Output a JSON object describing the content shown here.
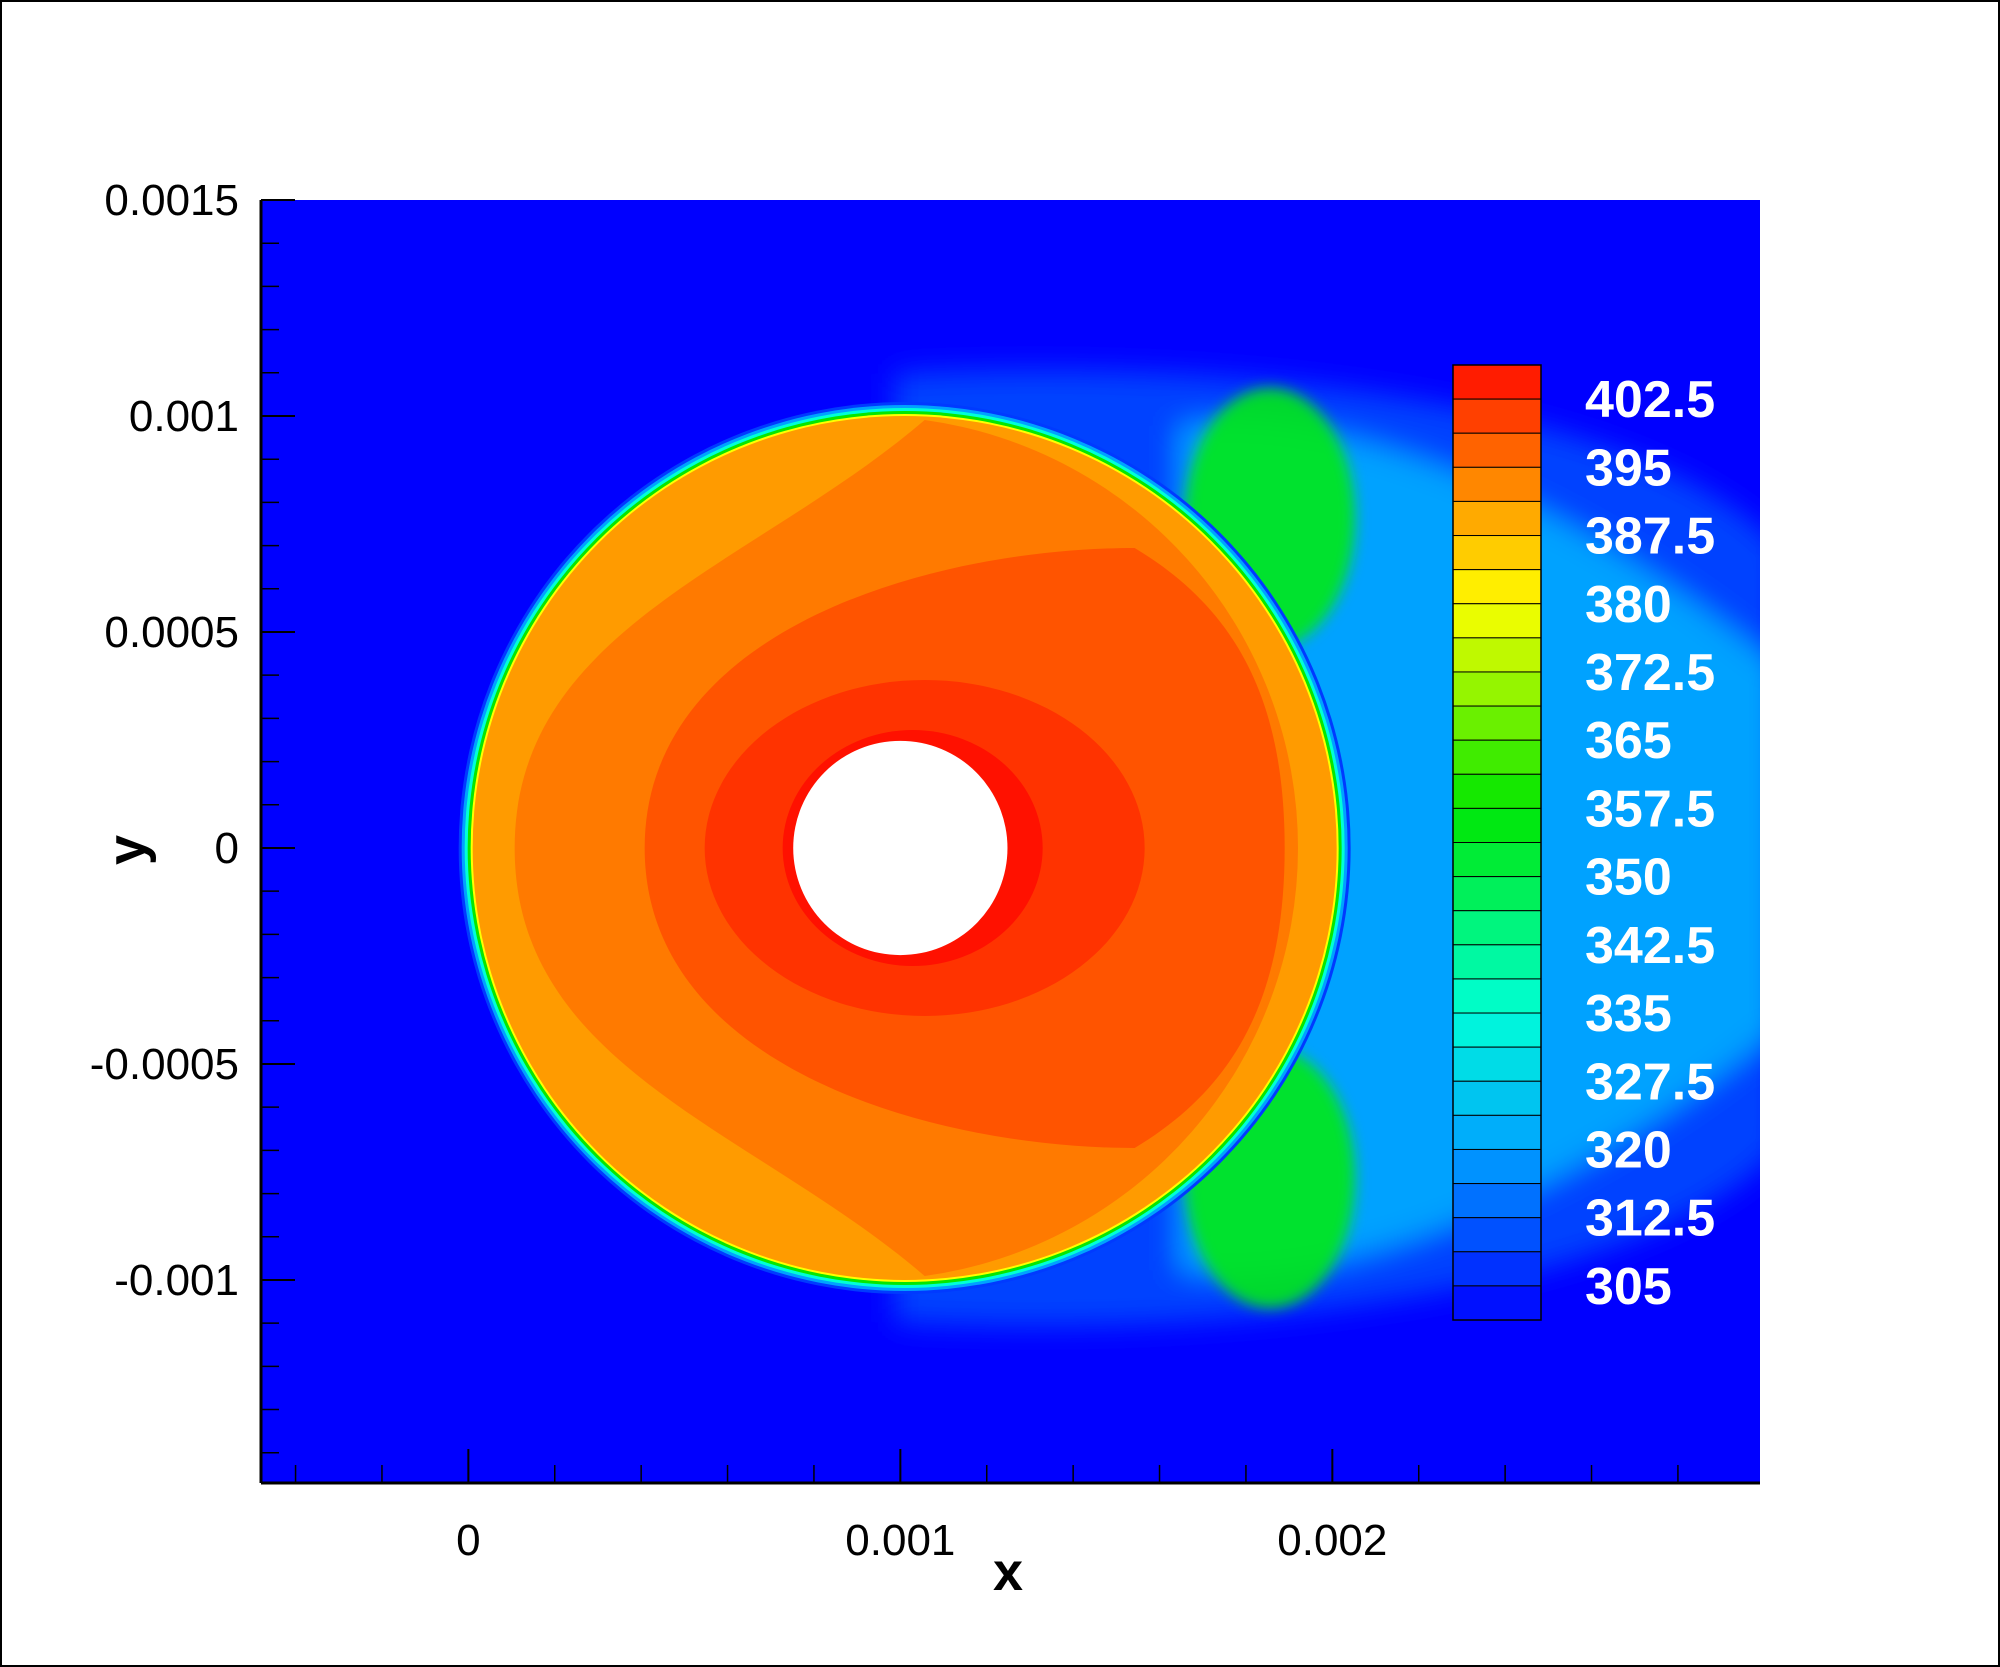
{
  "chart_data": {
    "type": "heatmap",
    "subtype": "contour",
    "title": "",
    "xlabel": "x",
    "ylabel": "y",
    "xlim": [
      -0.00048,
      0.00299
    ],
    "ylim": [
      -0.00147,
      0.0015
    ],
    "x_ticks": [
      {
        "value": 0,
        "label": "0"
      },
      {
        "value": 0.001,
        "label": "0.001"
      },
      {
        "value": 0.002,
        "label": "0.002"
      }
    ],
    "y_ticks": [
      {
        "value": 0.0015,
        "label": "0.0015"
      },
      {
        "value": 0.001,
        "label": "0.001"
      },
      {
        "value": 0.0005,
        "label": "0.0005"
      },
      {
        "value": 0,
        "label": "0"
      },
      {
        "value": -0.0005,
        "label": "-0.0005"
      },
      {
        "value": -0.001,
        "label": "-0.001"
      }
    ],
    "grid": false,
    "background_color": "#0000ff",
    "colorbar": {
      "position": "inside-right",
      "min": 301.25,
      "max": 406.25,
      "level_step": 3.75,
      "labels": [
        "402.5",
        "395",
        "387.5",
        "380",
        "372.5",
        "365",
        "357.5",
        "350",
        "342.5",
        "335",
        "327.5",
        "320",
        "312.5",
        "305"
      ],
      "colormap_stops": [
        {
          "value": 301.25,
          "color": "#0000ff"
        },
        {
          "value": 320,
          "color": "#00a2ff"
        },
        {
          "value": 335,
          "color": "#00ffd8"
        },
        {
          "value": 357.5,
          "color": "#00e600"
        },
        {
          "value": 380,
          "color": "#ffff00"
        },
        {
          "value": 391.25,
          "color": "#ff9900"
        },
        {
          "value": 406.25,
          "color": "#ff0a00"
        }
      ]
    },
    "regions": [
      {
        "name": "cylinder",
        "shape": "circle",
        "center": [
          0.001,
          0
        ],
        "radius": 0.000248,
        "value": null,
        "fill": "#ffffff"
      },
      {
        "name": "outer-hot-zone",
        "shape": "circle",
        "center": [
          0.00101,
          0
        ],
        "radius": 0.001,
        "value": 388
      },
      {
        "name": "wake-outer-halo",
        "value": 309
      },
      {
        "name": "wake-inner-band",
        "value": 320
      },
      {
        "name": "wake-green-lobes",
        "value": 355
      }
    ]
  }
}
